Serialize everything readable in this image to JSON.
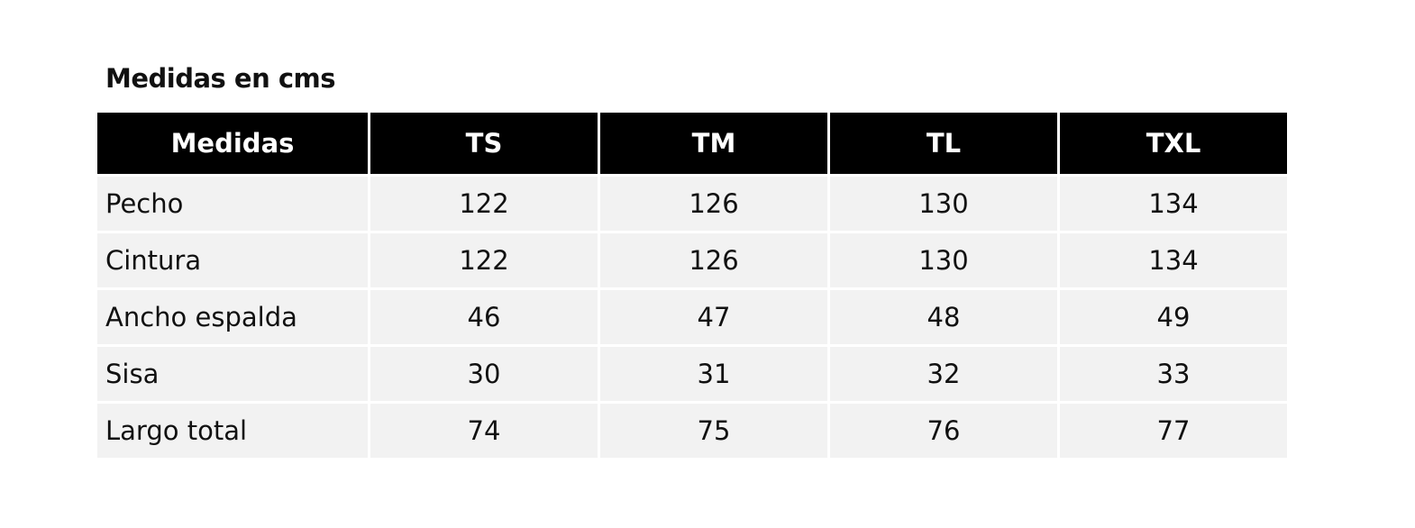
{
  "title": "Medidas en cms",
  "table": {
    "header": [
      "Medidas",
      "TS",
      "TM",
      "TL",
      "TXL"
    ],
    "rows": [
      [
        "Pecho",
        122,
        126,
        130,
        134
      ],
      [
        "Cintura",
        122,
        126,
        130,
        134
      ],
      [
        "Ancho espalda",
        46,
        47,
        48,
        49
      ],
      [
        "Sisa",
        30,
        31,
        32,
        33
      ],
      [
        "Largo total",
        74,
        75,
        76,
        77
      ]
    ]
  }
}
